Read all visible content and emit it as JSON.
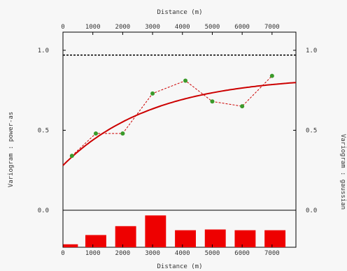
{
  "chart_data": {
    "type": "line",
    "xlabel": "Distance (m)",
    "ylabel_left": "Variogram : power-as",
    "ylabel_right": "Variogram : gaussian",
    "xlim": [
      0,
      7800
    ],
    "ylim": [
      0.0,
      1.0
    ],
    "x_ticks": [
      0,
      1000,
      2000,
      3000,
      4000,
      5000,
      6000,
      7000
    ],
    "x_tick_labels": [
      "0",
      "1000",
      "2000",
      "3000",
      "4000",
      "5000",
      "6000",
      "7000"
    ],
    "y_ticks": [
      0.0,
      0.5,
      1.0
    ],
    "y_tick_labels_left": [
      "0.0",
      "0.5",
      "1.0"
    ],
    "y_tick_labels_right": [
      "0.0",
      "0.5",
      "1.0"
    ],
    "sill": 0.97,
    "series": [
      {
        "kind": "experimental",
        "color": "#cc0000",
        "marker_color": "#3a9a2a",
        "points": [
          {
            "x": 300,
            "y": 0.34
          },
          {
            "x": 1100,
            "y": 0.48
          },
          {
            "x": 2000,
            "y": 0.48
          },
          {
            "x": 3000,
            "y": 0.73
          },
          {
            "x": 4100,
            "y": 0.81
          },
          {
            "x": 5000,
            "y": 0.68
          },
          {
            "x": 6000,
            "y": 0.65
          },
          {
            "x": 7000,
            "y": 0.84
          }
        ]
      },
      {
        "kind": "model",
        "color": "#cc0000",
        "nugget": 0.28,
        "partial_sill": 0.56,
        "range": 3000
      }
    ],
    "histogram": {
      "color": "#ee0000",
      "bins": [
        {
          "x0": 0,
          "x1": 500,
          "value": 0.08
        },
        {
          "x0": 750,
          "x1": 1450,
          "value": 0.33
        },
        {
          "x0": 1750,
          "x1": 2450,
          "value": 0.57
        },
        {
          "x0": 2750,
          "x1": 3450,
          "value": 0.86
        },
        {
          "x0": 3750,
          "x1": 4450,
          "value": 0.46
        },
        {
          "x0": 4750,
          "x1": 5450,
          "value": 0.48
        },
        {
          "x0": 5750,
          "x1": 6450,
          "value": 0.46
        },
        {
          "x0": 6750,
          "x1": 7450,
          "value": 0.46
        }
      ]
    }
  }
}
